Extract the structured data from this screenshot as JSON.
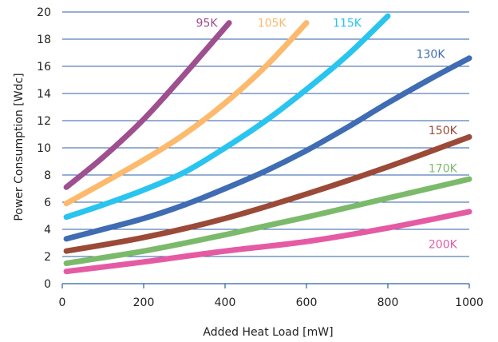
{
  "chart_data": {
    "type": "line",
    "title": "",
    "xlabel": "Added Heat Load [mW]",
    "ylabel": "Power Consumption [Wdc]",
    "xlim": [
      0,
      1000
    ],
    "ylim": [
      0,
      20
    ],
    "xticks": [
      0,
      200,
      400,
      600,
      800,
      1000
    ],
    "yticks": [
      0,
      2,
      4,
      6,
      8,
      10,
      12,
      14,
      16,
      18,
      20
    ],
    "grid": "horizontal",
    "legend": "inline-labels",
    "series": [
      {
        "name": "95K",
        "color": "#9e4f8f",
        "label_pos": [
          355,
          19.2
        ],
        "points": [
          [
            10,
            7.1
          ],
          [
            100,
            9.3
          ],
          [
            200,
            12.1
          ],
          [
            300,
            15.4
          ],
          [
            410,
            19.2
          ]
        ]
      },
      {
        "name": "105K",
        "color": "#fdb96c",
        "label_pos": [
          515,
          19.2
        ],
        "points": [
          [
            10,
            5.9
          ],
          [
            100,
            7.4
          ],
          [
            200,
            9.1
          ],
          [
            300,
            11.0
          ],
          [
            400,
            13.3
          ],
          [
            500,
            16.0
          ],
          [
            600,
            19.2
          ]
        ]
      },
      {
        "name": "115K",
        "color": "#29c4ef",
        "label_pos": [
          700,
          19.2
        ],
        "points": [
          [
            10,
            4.9
          ],
          [
            100,
            5.8
          ],
          [
            200,
            6.9
          ],
          [
            300,
            8.2
          ],
          [
            400,
            10.0
          ],
          [
            500,
            12.0
          ],
          [
            600,
            14.3
          ],
          [
            700,
            16.8
          ],
          [
            800,
            19.7
          ]
        ]
      },
      {
        "name": "130K",
        "color": "#3f6cb2",
        "label_pos": [
          905,
          16.9
        ],
        "points": [
          [
            10,
            3.3
          ],
          [
            100,
            4.0
          ],
          [
            200,
            4.8
          ],
          [
            300,
            5.8
          ],
          [
            400,
            7.0
          ],
          [
            500,
            8.3
          ],
          [
            600,
            9.8
          ],
          [
            700,
            11.5
          ],
          [
            800,
            13.3
          ],
          [
            900,
            15.0
          ],
          [
            1000,
            16.6
          ]
        ]
      },
      {
        "name": "150K",
        "color": "#9b4a38",
        "label_pos": [
          935,
          11.3
        ],
        "points": [
          [
            10,
            2.4
          ],
          [
            200,
            3.4
          ],
          [
            400,
            4.8
          ],
          [
            600,
            6.6
          ],
          [
            800,
            8.6
          ],
          [
            1000,
            10.8
          ]
        ]
      },
      {
        "name": "170K",
        "color": "#7cba6b",
        "label_pos": [
          935,
          8.5
        ],
        "points": [
          [
            10,
            1.5
          ],
          [
            200,
            2.4
          ],
          [
            400,
            3.6
          ],
          [
            600,
            4.9
          ],
          [
            800,
            6.3
          ],
          [
            1000,
            7.7
          ]
        ]
      },
      {
        "name": "200K",
        "color": "#e55ba3",
        "label_pos": [
          935,
          2.9
        ],
        "points": [
          [
            10,
            0.9
          ],
          [
            200,
            1.6
          ],
          [
            400,
            2.4
          ],
          [
            600,
            3.1
          ],
          [
            800,
            4.1
          ],
          [
            1000,
            5.3
          ]
        ]
      }
    ]
  }
}
